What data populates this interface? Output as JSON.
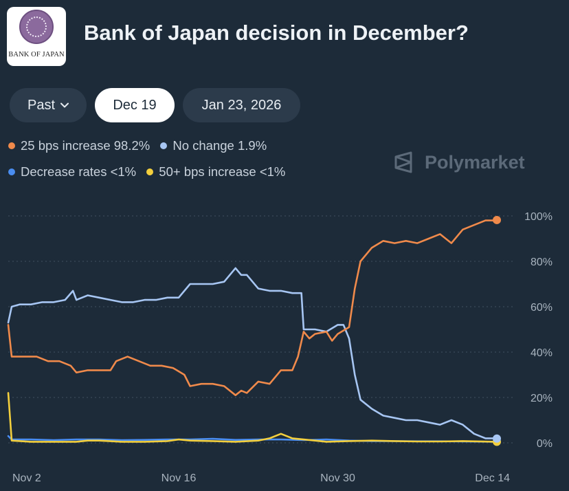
{
  "header": {
    "logo_text": "BANK OF JAPAN",
    "title": "Bank of Japan decision in December?"
  },
  "tabs": [
    {
      "label": "Past",
      "active": false,
      "dropdown": true
    },
    {
      "label": "Dec 19",
      "active": true
    },
    {
      "label": "Jan 23, 2026",
      "active": false
    }
  ],
  "legend": [
    {
      "label": "25 bps increase 98.2%",
      "color": "#f08a4b"
    },
    {
      "label": "No change 1.9%",
      "color": "#a7c6f3"
    },
    {
      "label": "Decrease rates <1%",
      "color": "#4a8df0"
    },
    {
      "label": "50+ bps increase <1%",
      "color": "#f3cf3d"
    }
  ],
  "brand": {
    "name": "Polymarket",
    "icon": "polymarket-logo-icon"
  },
  "chart_data": {
    "type": "line",
    "title": "Bank of Japan decision in December?",
    "xlabel": "",
    "ylabel": "",
    "ylim": [
      0,
      100
    ],
    "x_range": [
      0,
      43
    ],
    "x_ticks": [
      {
        "x": 1,
        "label": "Nov 2"
      },
      {
        "x": 15,
        "label": "Nov 16"
      },
      {
        "x": 29,
        "label": "Nov 30"
      },
      {
        "x": 43,
        "label": "Dec 14"
      }
    ],
    "y_ticks": [
      {
        "y": 0,
        "label": "0%"
      },
      {
        "y": 20,
        "label": "20%"
      },
      {
        "y": 40,
        "label": "40%"
      },
      {
        "y": 60,
        "label": "60%"
      },
      {
        "y": 80,
        "label": "80%"
      },
      {
        "y": 100,
        "label": "100%"
      }
    ],
    "grid": true,
    "legend_position": "top-left",
    "series": [
      {
        "name": "25 bps increase",
        "color": "#f08a4b",
        "end_value": 98.2,
        "points": [
          [
            0,
            52
          ],
          [
            0.3,
            38
          ],
          [
            1.5,
            38
          ],
          [
            2.5,
            38
          ],
          [
            3.5,
            36
          ],
          [
            4.5,
            36
          ],
          [
            5.5,
            34
          ],
          [
            6,
            31
          ],
          [
            7,
            32
          ],
          [
            8,
            32
          ],
          [
            9,
            32
          ],
          [
            9.5,
            36
          ],
          [
            10.5,
            38
          ],
          [
            11.5,
            36
          ],
          [
            12.5,
            34
          ],
          [
            13.5,
            34
          ],
          [
            14.5,
            33
          ],
          [
            15.5,
            30
          ],
          [
            16,
            25
          ],
          [
            17,
            26
          ],
          [
            18,
            26
          ],
          [
            19,
            25
          ],
          [
            20,
            21
          ],
          [
            20.5,
            23
          ],
          [
            21,
            22
          ],
          [
            22,
            27
          ],
          [
            23,
            26
          ],
          [
            24,
            32
          ],
          [
            25,
            32
          ],
          [
            25.5,
            38
          ],
          [
            26,
            49
          ],
          [
            26.5,
            46
          ],
          [
            27,
            48
          ],
          [
            28,
            49
          ],
          [
            28.5,
            45
          ],
          [
            29,
            48
          ],
          [
            30,
            51
          ],
          [
            30.5,
            68
          ],
          [
            31,
            80
          ],
          [
            32,
            86
          ],
          [
            33,
            89
          ],
          [
            34,
            88
          ],
          [
            35,
            89
          ],
          [
            36,
            88
          ],
          [
            37,
            90
          ],
          [
            38,
            92
          ],
          [
            39,
            88
          ],
          [
            40,
            94
          ],
          [
            41,
            96
          ],
          [
            42,
            98
          ],
          [
            43,
            98
          ]
        ]
      },
      {
        "name": "No change",
        "color": "#a7c6f3",
        "end_value": 1.9,
        "points": [
          [
            0,
            53
          ],
          [
            0.3,
            60
          ],
          [
            1,
            61
          ],
          [
            2,
            61
          ],
          [
            3,
            62
          ],
          [
            4,
            62
          ],
          [
            5,
            63
          ],
          [
            5.7,
            67
          ],
          [
            6,
            63
          ],
          [
            7,
            65
          ],
          [
            8,
            64
          ],
          [
            9,
            63
          ],
          [
            10,
            62
          ],
          [
            11,
            62
          ],
          [
            12,
            63
          ],
          [
            13,
            63
          ],
          [
            14,
            64
          ],
          [
            15,
            64
          ],
          [
            16,
            70
          ],
          [
            17,
            70
          ],
          [
            18,
            70
          ],
          [
            19,
            71
          ],
          [
            20,
            77
          ],
          [
            20.5,
            74
          ],
          [
            21,
            74
          ],
          [
            22,
            68
          ],
          [
            23,
            67
          ],
          [
            24,
            67
          ],
          [
            25,
            66
          ],
          [
            25.8,
            66
          ],
          [
            26,
            50
          ],
          [
            27,
            50
          ],
          [
            28,
            49
          ],
          [
            29,
            52
          ],
          [
            29.5,
            52
          ],
          [
            30,
            46
          ],
          [
            30.5,
            30
          ],
          [
            31,
            19
          ],
          [
            32,
            15
          ],
          [
            33,
            12
          ],
          [
            34,
            11
          ],
          [
            35,
            10
          ],
          [
            36,
            10
          ],
          [
            37,
            9
          ],
          [
            38,
            8
          ],
          [
            39,
            10
          ],
          [
            40,
            8
          ],
          [
            41,
            4
          ],
          [
            42,
            2
          ],
          [
            43,
            2
          ]
        ]
      },
      {
        "name": "Decrease rates",
        "color": "#4a8df0",
        "end_value": 0.5,
        "points": [
          [
            0,
            3
          ],
          [
            0.3,
            1.5
          ],
          [
            2,
            1.5
          ],
          [
            4,
            1.2
          ],
          [
            6,
            1.5
          ],
          [
            8,
            1.5
          ],
          [
            10,
            1.2
          ],
          [
            12,
            1.3
          ],
          [
            14,
            1.5
          ],
          [
            16,
            1.5
          ],
          [
            18,
            1.8
          ],
          [
            20,
            1.3
          ],
          [
            22,
            1.5
          ],
          [
            24,
            1.5
          ],
          [
            26,
            1.2
          ],
          [
            28,
            1.5
          ],
          [
            30,
            1
          ],
          [
            32,
            0.8
          ],
          [
            34,
            0.8
          ],
          [
            36,
            0.7
          ],
          [
            38,
            0.7
          ],
          [
            40,
            0.6
          ],
          [
            43,
            0.5
          ]
        ]
      },
      {
        "name": "50+ bps increase",
        "color": "#f3cf3d",
        "end_value": 0.5,
        "points": [
          [
            0,
            22
          ],
          [
            0.3,
            1
          ],
          [
            2,
            0.5
          ],
          [
            4,
            0.5
          ],
          [
            6,
            0.5
          ],
          [
            7,
            1
          ],
          [
            8,
            1
          ],
          [
            10,
            0.5
          ],
          [
            12,
            0.5
          ],
          [
            14,
            0.8
          ],
          [
            15,
            1.5
          ],
          [
            16,
            1
          ],
          [
            18,
            0.8
          ],
          [
            20,
            0.5
          ],
          [
            22,
            1
          ],
          [
            23,
            2
          ],
          [
            24,
            4
          ],
          [
            25,
            2
          ],
          [
            26,
            1.5
          ],
          [
            27,
            1
          ],
          [
            28,
            0.5
          ],
          [
            30,
            0.8
          ],
          [
            32,
            1
          ],
          [
            34,
            0.8
          ],
          [
            36,
            0.6
          ],
          [
            38,
            0.6
          ],
          [
            40,
            0.8
          ],
          [
            43,
            0.5
          ]
        ]
      }
    ]
  }
}
